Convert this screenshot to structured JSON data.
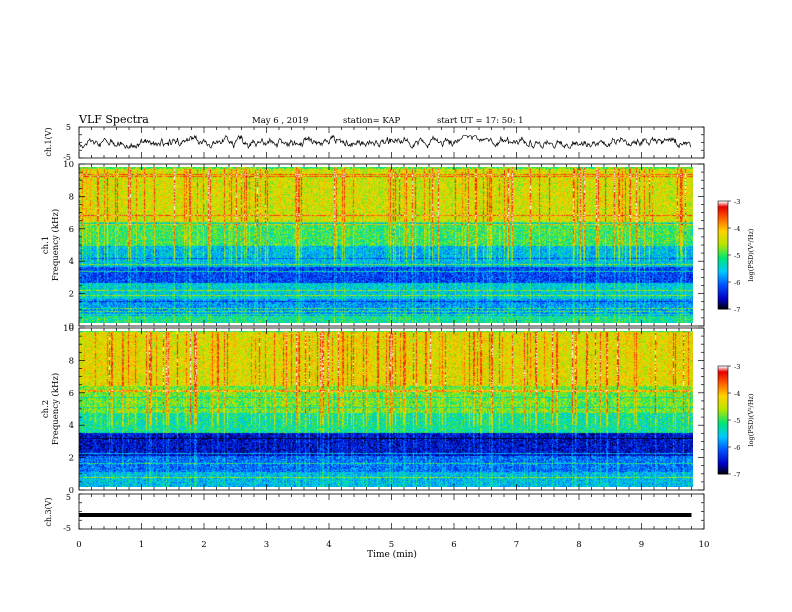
{
  "header": {
    "title": "VLF Spectra",
    "date": "May 6 , 2019",
    "station": "station= KAP",
    "start": "start UT =  17: 50: 1"
  },
  "chart_data": [
    {
      "type": "line",
      "name": "ch1-waveform",
      "ylabel": "ch.1(V)",
      "ylim": [
        -5,
        5
      ],
      "yticks": [
        "5",
        "-5"
      ],
      "xlim": [
        0,
        10
      ],
      "x_range_min": [
        0,
        9.8
      ],
      "approx_y_range": [
        -1.8,
        2.2
      ],
      "grid": false
    },
    {
      "type": "heatmap",
      "name": "ch1-spectrogram",
      "ylabel": "ch.1\nFrequency (kHz)",
      "ylim": [
        0,
        10
      ],
      "yticks": [
        "0",
        "2",
        "4",
        "6",
        "8",
        "10"
      ],
      "xlim": [
        0,
        10
      ],
      "data_x_end": 9.8,
      "bands_khz": [
        {
          "from": 0,
          "to": 0.6,
          "level": -5.2
        },
        {
          "from": 0.6,
          "to": 1.6,
          "level": -5.8
        },
        {
          "from": 1.6,
          "to": 2.6,
          "level": -5.5
        },
        {
          "from": 2.6,
          "to": 3.6,
          "level": -6.2
        },
        {
          "from": 3.6,
          "to": 5.0,
          "level": -5.6
        },
        {
          "from": 5.0,
          "to": 6.5,
          "level": -5.0
        },
        {
          "from": 6.5,
          "to": 10,
          "level": -4.4
        }
      ],
      "colorbar": {
        "label": "log(PSD)(V²/Hz)",
        "ticks": [
          "-3",
          "-4",
          "-5",
          "-6",
          "-7"
        ],
        "range": [
          -7,
          -3
        ]
      }
    },
    {
      "type": "heatmap",
      "name": "ch2-spectrogram",
      "ylabel": "ch.2\nFrequency (kHz)",
      "ylim": [
        0,
        10
      ],
      "yticks": [
        "0",
        "2",
        "4",
        "6",
        "8",
        "10"
      ],
      "xlim": [
        0,
        10
      ],
      "data_x_end": 9.8,
      "bands_khz": [
        {
          "from": 0,
          "to": 1.0,
          "level": -5.6
        },
        {
          "from": 1.0,
          "to": 2.0,
          "level": -6.0
        },
        {
          "from": 2.0,
          "to": 3.5,
          "level": -6.5
        },
        {
          "from": 3.5,
          "to": 4.8,
          "level": -5.2
        },
        {
          "from": 4.8,
          "to": 6.5,
          "level": -4.8
        },
        {
          "from": 6.5,
          "to": 10,
          "level": -4.3
        }
      ],
      "colorbar": {
        "label": "log(PSD)(V²/Hz)",
        "ticks": [
          "-3",
          "-4",
          "-5",
          "-6",
          "-7"
        ],
        "range": [
          -7,
          -3
        ]
      }
    },
    {
      "type": "line",
      "name": "ch3-waveform",
      "ylabel": "ch.3(V)",
      "ylim": [
        -5,
        5
      ],
      "yticks": [
        "5",
        "-5"
      ],
      "xlim": [
        0,
        10
      ],
      "x_range_min": [
        0,
        9.8
      ],
      "approx_value": -1.0,
      "grid": false
    }
  ],
  "xaxis": {
    "label": "Time (min)",
    "ticks": [
      "0",
      "1",
      "2",
      "3",
      "4",
      "5",
      "6",
      "7",
      "8",
      "9",
      "10"
    ]
  },
  "colors": {
    "axes": "#000000",
    "trace": "#000000",
    "colormap": [
      "#000000",
      "#0000c8",
      "#0050ff",
      "#00c8ff",
      "#00e676",
      "#b4e600",
      "#ffd200",
      "#ff5a00",
      "#e60000",
      "#ffffff"
    ]
  }
}
